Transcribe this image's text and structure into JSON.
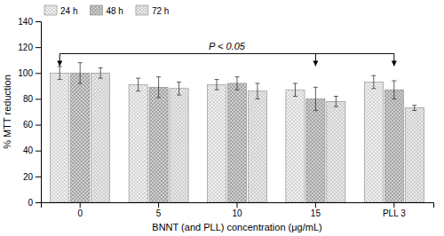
{
  "chart_data": {
    "type": "bar",
    "xlabel": "BNNT (and PLL) concentration (μg/mL)",
    "ylabel": "% MTT reduction",
    "categories": [
      "0",
      "5",
      "10",
      "15",
      "PLL 3"
    ],
    "series": [
      {
        "name": "24 h",
        "color": "#f0f0f0",
        "values": [
          100,
          91,
          91,
          87,
          93
        ],
        "errors": [
          5,
          5,
          4,
          5,
          5
        ]
      },
      {
        "name": "48 h",
        "color": "#d0d0d0",
        "values": [
          100,
          89,
          92,
          80,
          87
        ],
        "errors": [
          8,
          8,
          5,
          9,
          7
        ]
      },
      {
        "name": "72 h",
        "color": "#e8e8e8",
        "values": [
          100,
          88,
          86,
          78,
          73
        ],
        "errors": [
          4,
          5,
          6,
          4,
          2
        ]
      }
    ],
    "ylim": [
      0,
      140
    ],
    "yticks": [
      0,
      20,
      40,
      60,
      80,
      100,
      120,
      140
    ],
    "grid": false,
    "legend": "upper left",
    "annotations": [
      {
        "text": "P < 0.05",
        "y": 117,
        "arrow_y": 115,
        "targets": [
          "0",
          "15",
          "PLL 3"
        ]
      }
    ]
  }
}
